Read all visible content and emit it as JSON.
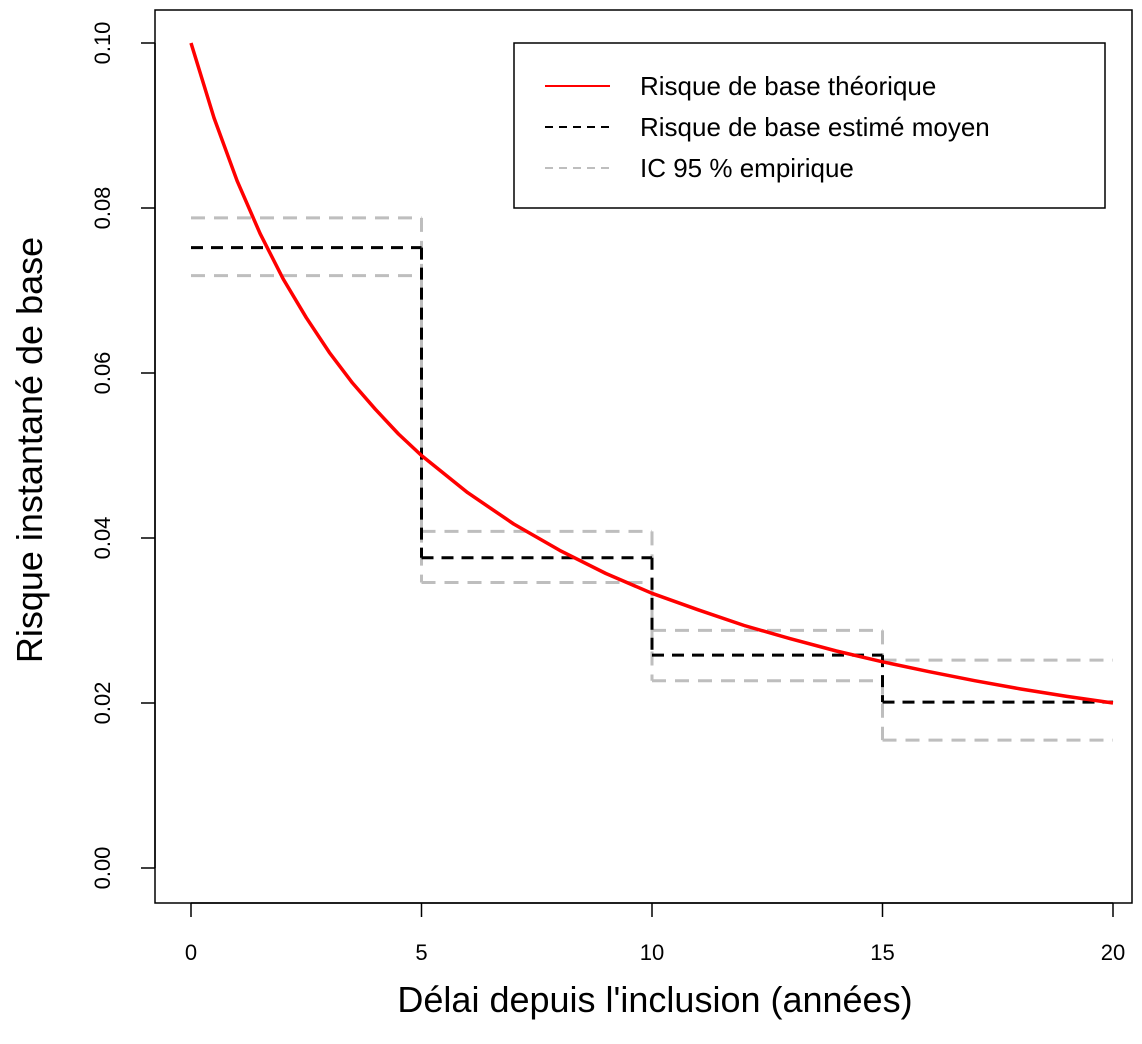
{
  "chart_data": {
    "type": "line",
    "title": "",
    "xlabel": "Délai depuis l'inclusion (années)",
    "ylabel": "Risque instantané de base",
    "xlim": [
      0,
      20
    ],
    "ylim": [
      0,
      0.1
    ],
    "x_ticks": [
      0,
      5,
      10,
      15,
      20
    ],
    "x_tick_labels": [
      "0",
      "5",
      "10",
      "15",
      "20"
    ],
    "y_ticks": [
      0,
      0.02,
      0.04,
      0.06,
      0.08,
      0.1
    ],
    "y_tick_labels": [
      "0.00",
      "0.02",
      "0.04",
      "0.06",
      "0.08",
      "0.10"
    ],
    "grid": false,
    "legend_position": "top-right",
    "series": [
      {
        "name": "Risque de base théorique",
        "kind": "curve",
        "color": "#ff0000",
        "style": "solid",
        "x": [
          0,
          0.5,
          1,
          1.5,
          2,
          2.5,
          3,
          3.5,
          4,
          4.5,
          5,
          6,
          7,
          8,
          9,
          10,
          11,
          12,
          13,
          14,
          15,
          16,
          17,
          18,
          19,
          20
        ],
        "y": [
          0.1,
          0.0909,
          0.0833,
          0.0769,
          0.0714,
          0.0667,
          0.0625,
          0.0588,
          0.0556,
          0.0526,
          0.05,
          0.0455,
          0.0417,
          0.0385,
          0.0357,
          0.0333,
          0.0313,
          0.0294,
          0.0278,
          0.0263,
          0.025,
          0.0238,
          0.0227,
          0.0217,
          0.0208,
          0.02
        ]
      },
      {
        "name": "Risque de base estimé moyen",
        "kind": "step",
        "color": "#000000",
        "style": "dashed",
        "breaks": [
          0,
          5,
          10,
          15,
          20
        ],
        "values": [
          0.0752,
          0.0376,
          0.0258,
          0.0201
        ]
      },
      {
        "name": "IC 95 % empirique",
        "kind": "band-steps",
        "color": "#bebebe",
        "style": "dashed",
        "breaks": [
          0,
          5,
          10,
          15,
          20
        ],
        "upper": [
          0.0788,
          0.0408,
          0.0288,
          0.0252
        ],
        "lower": [
          0.0718,
          0.0346,
          0.0227,
          0.0155
        ]
      }
    ]
  }
}
